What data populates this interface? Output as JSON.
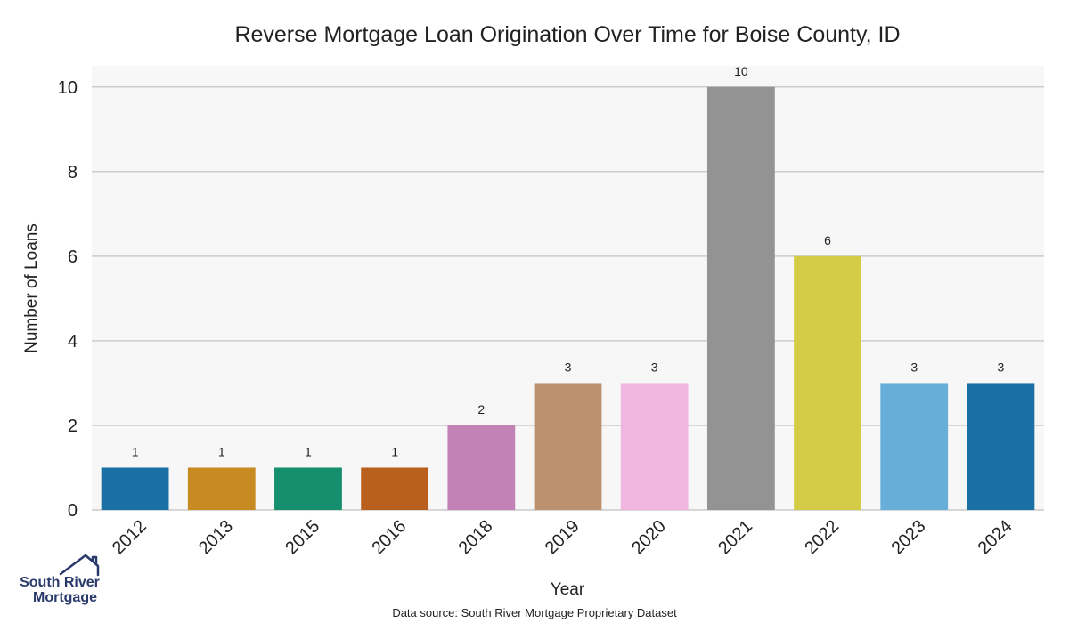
{
  "chart_data": {
    "type": "bar",
    "title": "Reverse Mortgage Loan Origination Over Time for Boise County, ID",
    "xlabel": "Year",
    "ylabel": "Number of Loans",
    "categories": [
      "2012",
      "2013",
      "2015",
      "2016",
      "2018",
      "2019",
      "2020",
      "2021",
      "2022",
      "2023",
      "2024"
    ],
    "values": [
      1,
      1,
      1,
      1,
      2,
      3,
      3,
      10,
      6,
      3,
      3
    ],
    "colors": [
      "#1a70a5",
      "#c88a23",
      "#148e6c",
      "#b9601e",
      "#c282b5",
      "#bc916f",
      "#f1b6e0",
      "#939393",
      "#d4cb47",
      "#67aed9",
      "#1a70a5"
    ],
    "ylim": [
      0,
      10.5
    ],
    "yticks": [
      0,
      2,
      4,
      6,
      8,
      10
    ],
    "grid": true,
    "plot_background": "#f7f7f7",
    "grid_color": "#cccccc"
  },
  "footer": {
    "source": "Data source: South River Mortgage Proprietary Dataset"
  },
  "logo": {
    "line1": "South River",
    "line2": "Mortgage",
    "icon": "house-icon",
    "color": "#2a3a6b"
  }
}
